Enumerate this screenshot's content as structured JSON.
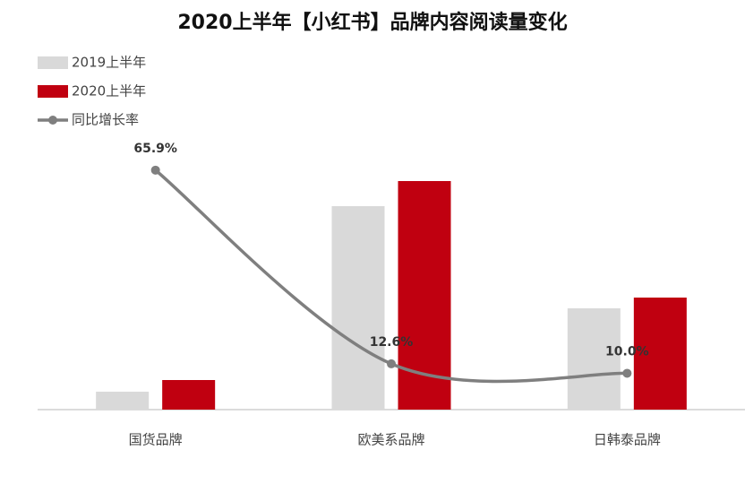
{
  "chart_data": {
    "type": "bar",
    "title": "2020上半年【小红书】品牌内容阅读量变化",
    "categories": [
      "国货品牌",
      "欧美系品牌",
      "日韩泰品牌"
    ],
    "series": [
      {
        "name": "2019上半年",
        "color": "#d9d9d9",
        "values": [
          20,
          227,
          113
        ]
      },
      {
        "name": "2020上半年",
        "color": "#c00010",
        "values": [
          33,
          255,
          125
        ]
      },
      {
        "name": "同比增长率",
        "type": "line",
        "axis": "y2",
        "color": "#7f7f7f",
        "values": [
          65.9,
          12.6,
          10.0
        ],
        "value_labels": [
          "65.9%",
          "12.6%",
          "10.0%"
        ]
      }
    ],
    "ylim": [
      0,
      300
    ],
    "y2lim": [
      0,
      74
    ],
    "legend": "top-left"
  }
}
